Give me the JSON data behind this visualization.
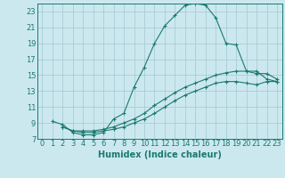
{
  "xlabel": "Humidex (Indice chaleur)",
  "bg_color": "#cce8ef",
  "grid_color": "#aaccd4",
  "line_color": "#1a7a6e",
  "xlim": [
    -0.5,
    23.5
  ],
  "ylim": [
    7,
    24
  ],
  "xticks": [
    0,
    1,
    2,
    3,
    4,
    5,
    6,
    7,
    8,
    9,
    10,
    11,
    12,
    13,
    14,
    15,
    16,
    17,
    18,
    19,
    20,
    21,
    22,
    23
  ],
  "yticks": [
    7,
    9,
    11,
    13,
    15,
    17,
    19,
    21,
    23
  ],
  "line1_x": [
    1,
    2,
    3,
    4,
    5,
    6,
    7,
    8,
    9,
    10,
    11,
    12,
    13,
    14,
    15,
    16,
    17,
    18,
    19,
    20,
    21,
    22,
    23
  ],
  "line1_y": [
    9.2,
    8.8,
    7.8,
    7.5,
    7.5,
    7.8,
    9.5,
    10.2,
    13.5,
    16.0,
    19.0,
    21.2,
    22.5,
    23.8,
    24.0,
    23.8,
    22.2,
    19.0,
    18.8,
    15.5,
    15.5,
    14.5,
    14.2
  ],
  "line2_x": [
    2,
    3,
    4,
    5,
    6,
    7,
    8,
    9,
    10,
    11,
    12,
    13,
    14,
    15,
    16,
    17,
    18,
    19,
    20,
    21,
    22,
    23
  ],
  "line2_y": [
    8.5,
    8.0,
    8.0,
    8.0,
    8.2,
    8.5,
    9.0,
    9.5,
    10.2,
    11.2,
    12.0,
    12.8,
    13.5,
    14.0,
    14.5,
    15.0,
    15.3,
    15.5,
    15.5,
    15.2,
    15.2,
    14.5
  ],
  "line3_x": [
    2,
    3,
    4,
    5,
    6,
    7,
    8,
    9,
    10,
    11,
    12,
    13,
    14,
    15,
    16,
    17,
    18,
    19,
    20,
    21,
    22,
    23
  ],
  "line3_y": [
    8.5,
    8.0,
    7.8,
    7.8,
    8.0,
    8.2,
    8.5,
    9.0,
    9.5,
    10.2,
    11.0,
    11.8,
    12.5,
    13.0,
    13.5,
    14.0,
    14.2,
    14.2,
    14.0,
    13.8,
    14.2,
    14.2
  ],
  "xlabel_fontsize": 7,
  "tick_fontsize": 6
}
